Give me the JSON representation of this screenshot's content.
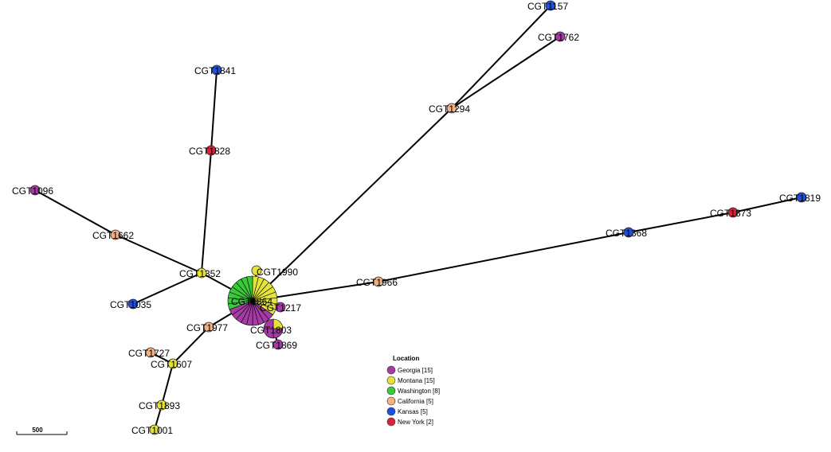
{
  "colors": {
    "Georgia": "#a63ba6",
    "Montana": "#e3e33a",
    "Washington": "#3ac93a",
    "California": "#f4b183",
    "Kansas": "#1f4fe0",
    "New York": "#d6243a"
  },
  "legend": {
    "title": "Location",
    "items": [
      {
        "key": "Georgia",
        "label": "Georgia [15]"
      },
      {
        "key": "Montana",
        "label": "Montana [15]"
      },
      {
        "key": "Washington",
        "label": "Washington [8]"
      },
      {
        "key": "California",
        "label": "California [5]"
      },
      {
        "key": "Kansas",
        "label": "Kansas [5]"
      },
      {
        "key": "New York",
        "label": "New York [2]"
      }
    ]
  },
  "scale": {
    "label": "500"
  },
  "nodes": [
    {
      "id": "CGT1864",
      "label": "CGT1864",
      "loc": "Montana"
    },
    {
      "id": "CGT1990",
      "label": "CGT1990",
      "loc": "Montana"
    },
    {
      "id": "CGT1217",
      "label": "CGT1217",
      "loc": "Georgia"
    },
    {
      "id": "CGT1803",
      "label": "CGT1803",
      "loc": "Georgia"
    },
    {
      "id": "CGT1869",
      "label": "CGT1869",
      "loc": "Georgia"
    },
    {
      "id": "CGT1352",
      "label": "CGT1352",
      "loc": "Montana"
    },
    {
      "id": "CGT1662",
      "label": "CGT1662",
      "loc": "California"
    },
    {
      "id": "CGT1096",
      "label": "CGT1096",
      "loc": "Georgia"
    },
    {
      "id": "CGT1828",
      "label": "CGT1828",
      "loc": "New York"
    },
    {
      "id": "CGT1841",
      "label": "CGT1841",
      "loc": "Kansas"
    },
    {
      "id": "CGT1035",
      "label": "CGT1035",
      "loc": "Kansas"
    },
    {
      "id": "CGT1977",
      "label": "CGT1977",
      "loc": "California"
    },
    {
      "id": "CGT1607",
      "label": "CGT1607",
      "loc": "Montana"
    },
    {
      "id": "CGT1727",
      "label": "CGT1727",
      "loc": "California"
    },
    {
      "id": "CGT1893",
      "label": "CGT1893",
      "loc": "Montana"
    },
    {
      "id": "CGT1001",
      "label": "CGT1001",
      "loc": "Montana"
    },
    {
      "id": "CGT1294",
      "label": "CGT1294",
      "loc": "California"
    },
    {
      "id": "CGT1157",
      "label": "CGT1157",
      "loc": "Kansas"
    },
    {
      "id": "CGT1762",
      "label": "CGT1762",
      "loc": "Georgia"
    },
    {
      "id": "CGT1966",
      "label": "CGT1966",
      "loc": "California"
    },
    {
      "id": "CGT1368",
      "label": "CGT1368",
      "loc": "Kansas"
    },
    {
      "id": "CGT1873",
      "label": "CGT1873",
      "loc": "New York"
    },
    {
      "id": "CGT1819",
      "label": "CGT1819",
      "loc": "Kansas"
    }
  ],
  "edges": [
    [
      "CGT1864",
      "CGT1352"
    ],
    [
      "CGT1352",
      "CGT1662"
    ],
    [
      "CGT1662",
      "CGT1096"
    ],
    [
      "CGT1352",
      "CGT1828"
    ],
    [
      "CGT1828",
      "CGT1841"
    ],
    [
      "CGT1352",
      "CGT1035"
    ],
    [
      "CGT1864",
      "CGT1977"
    ],
    [
      "CGT1977",
      "CGT1607"
    ],
    [
      "CGT1607",
      "CGT1727"
    ],
    [
      "CGT1607",
      "CGT1893"
    ],
    [
      "CGT1893",
      "CGT1001"
    ],
    [
      "CGT1864",
      "CGT1294"
    ],
    [
      "CGT1294",
      "CGT1157"
    ],
    [
      "CGT1294",
      "CGT1762"
    ],
    [
      "CGT1864",
      "CGT1966"
    ],
    [
      "CGT1966",
      "CGT1368"
    ],
    [
      "CGT1368",
      "CGT1873"
    ],
    [
      "CGT1873",
      "CGT1819"
    ],
    [
      "CGT1864",
      "CGT1990"
    ],
    [
      "CGT1864",
      "CGT1217"
    ],
    [
      "CGT1864",
      "CGT1803"
    ],
    [
      "CGT1803",
      "CGT1869"
    ]
  ],
  "hub": {
    "id": "CGT1864",
    "slices": [
      {
        "loc": "Montana",
        "count": 9
      },
      {
        "loc": "Georgia",
        "count": 9
      },
      {
        "loc": "Washington",
        "count": 8
      }
    ]
  },
  "pie_nodes": [
    {
      "id": "CGT1803",
      "slices": [
        {
          "loc": "Montana",
          "count": 1
        },
        {
          "loc": "Georgia",
          "count": 3
        }
      ]
    }
  ]
}
